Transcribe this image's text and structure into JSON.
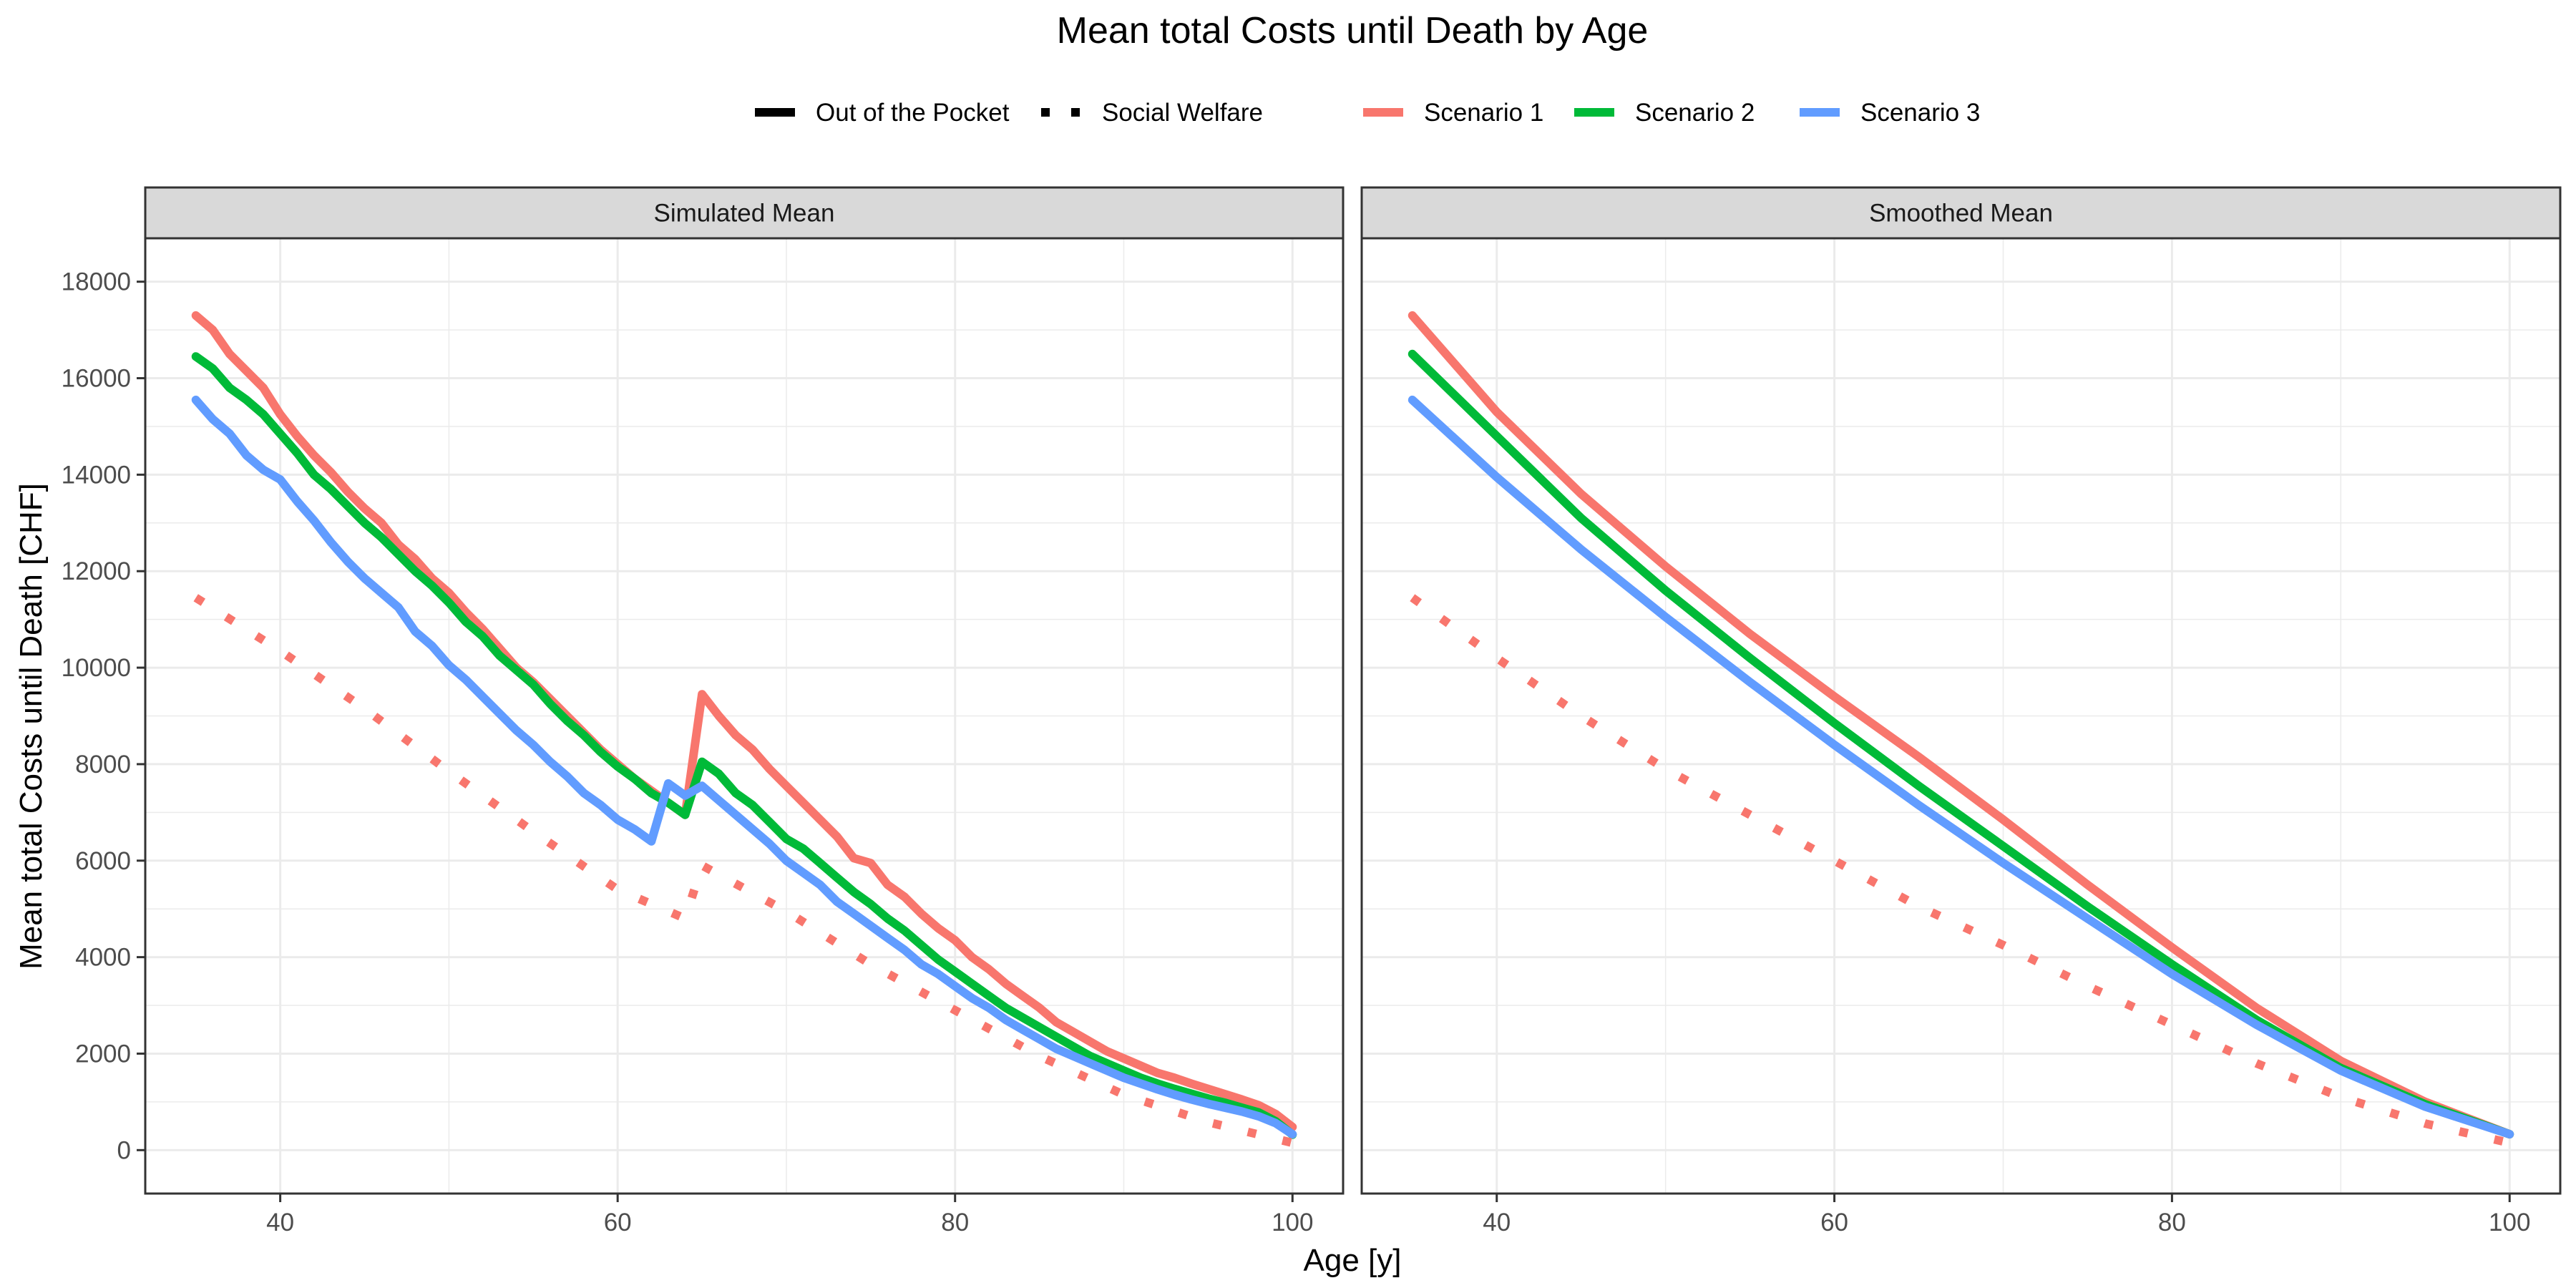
{
  "chart_data": {
    "type": "line",
    "title": "Mean total Costs until Death by Age",
    "xlabel": "Age [y]",
    "ylabel": "Mean total Costs until Death [CHF]",
    "xlim": [
      32,
      103
    ],
    "ylim": [
      -900,
      18900
    ],
    "x_ticks": [
      40,
      60,
      80,
      100
    ],
    "y_ticks": [
      0,
      2000,
      4000,
      6000,
      8000,
      10000,
      12000,
      14000,
      16000,
      18000
    ],
    "grid": true,
    "legend_position": "top",
    "legend": {
      "linetype": [
        {
          "label": "Out of the Pocket",
          "style": "solid"
        },
        {
          "label": "Social Welfare",
          "style": "dotted"
        }
      ],
      "color": [
        {
          "label": "Scenario 1",
          "color": "#F8766D"
        },
        {
          "label": "Scenario 2",
          "color": "#00BA38"
        },
        {
          "label": "Scenario 3",
          "color": "#619CFF"
        }
      ]
    },
    "panels": [
      {
        "label": "Simulated Mean",
        "series": [
          {
            "scenario": "Scenario 1",
            "type": "Out of the Pocket",
            "color": "#F8766D",
            "style": "solid",
            "x": [
              35,
              36,
              37,
              38,
              39,
              40,
              41,
              42,
              43,
              44,
              45,
              46,
              47,
              48,
              49,
              50,
              51,
              52,
              53,
              54,
              55,
              56,
              57,
              58,
              59,
              60,
              61,
              62,
              63,
              64,
              65,
              66,
              67,
              68,
              69,
              70,
              71,
              72,
              73,
              74,
              75,
              76,
              77,
              78,
              79,
              80,
              81,
              82,
              83,
              84,
              85,
              86,
              87,
              88,
              89,
              90,
              91,
              92,
              93,
              94,
              95,
              96,
              97,
              98,
              99,
              100
            ],
            "y": [
              17300,
              17000,
              16500,
              16150,
              15800,
              15250,
              14800,
              14400,
              14050,
              13650,
              13300,
              13000,
              12550,
              12250,
              11850,
              11550,
              11150,
              10800,
              10400,
              10000,
              9700,
              9350,
              9000,
              8650,
              8300,
              8000,
              7700,
              7450,
              7200,
              6950,
              9450,
              9000,
              8600,
              8300,
              7900,
              7550,
              7200,
              6850,
              6500,
              6050,
              5950,
              5500,
              5250,
              4900,
              4600,
              4350,
              4000,
              3750,
              3450,
              3200,
              2950,
              2650,
              2450,
              2250,
              2050,
              1900,
              1750,
              1600,
              1500,
              1380,
              1270,
              1160,
              1050,
              930,
              750,
              480
            ]
          },
          {
            "scenario": "Scenario 2",
            "type": "Out of the Pocket",
            "color": "#00BA38",
            "style": "solid",
            "x": [
              35,
              36,
              37,
              38,
              39,
              40,
              41,
              42,
              43,
              44,
              45,
              46,
              47,
              48,
              49,
              50,
              51,
              52,
              53,
              54,
              55,
              56,
              57,
              58,
              59,
              60,
              61,
              62,
              63,
              64,
              65,
              66,
              67,
              68,
              69,
              70,
              71,
              72,
              73,
              74,
              75,
              76,
              77,
              78,
              79,
              80,
              81,
              82,
              83,
              84,
              85,
              86,
              87,
              88,
              89,
              90,
              91,
              92,
              93,
              94,
              95,
              96,
              97,
              98,
              99,
              100
            ],
            "y": [
              16450,
              16200,
              15800,
              15550,
              15250,
              14850,
              14450,
              14000,
              13700,
              13350,
              13000,
              12700,
              12350,
              12000,
              11700,
              11350,
              10950,
              10650,
              10250,
              9950,
              9650,
              9250,
              8900,
              8600,
              8250,
              7950,
              7700,
              7400,
              7200,
              6950,
              8050,
              7800,
              7400,
              7150,
              6800,
              6450,
              6250,
              5950,
              5650,
              5350,
              5100,
              4800,
              4550,
              4250,
              3950,
              3700,
              3450,
              3200,
              2950,
              2750,
              2550,
              2350,
              2150,
              1950,
              1800,
              1650,
              1500,
              1380,
              1270,
              1170,
              1070,
              980,
              880,
              780,
              600,
              320
            ]
          },
          {
            "scenario": "Scenario 3",
            "type": "Out of the Pocket",
            "color": "#619CFF",
            "style": "solid",
            "x": [
              35,
              36,
              37,
              38,
              39,
              40,
              41,
              42,
              43,
              44,
              45,
              46,
              47,
              48,
              49,
              50,
              51,
              52,
              53,
              54,
              55,
              56,
              57,
              58,
              59,
              60,
              61,
              62,
              63,
              64,
              65,
              66,
              67,
              68,
              69,
              70,
              71,
              72,
              73,
              74,
              75,
              76,
              77,
              78,
              79,
              80,
              81,
              82,
              83,
              84,
              85,
              86,
              87,
              88,
              89,
              90,
              91,
              92,
              93,
              94,
              95,
              96,
              97,
              98,
              99,
              100
            ],
            "y": [
              15550,
              15150,
              14850,
              14400,
              14100,
              13900,
              13450,
              13050,
              12600,
              12200,
              11850,
              11550,
              11250,
              10750,
              10450,
              10050,
              9750,
              9400,
              9050,
              8700,
              8400,
              8050,
              7750,
              7400,
              7150,
              6850,
              6650,
              6400,
              7600,
              7350,
              7550,
              7250,
              6950,
              6650,
              6350,
              6000,
              5750,
              5500,
              5150,
              4900,
              4650,
              4400,
              4150,
              3850,
              3650,
              3400,
              3150,
              2950,
              2700,
              2500,
              2300,
              2100,
              1950,
              1800,
              1650,
              1500,
              1380,
              1260,
              1150,
              1050,
              960,
              880,
              800,
              700,
              560,
              330
            ]
          },
          {
            "scenario": "Scenario 1",
            "type": "Social Welfare",
            "color": "#F8766D",
            "style": "dotted",
            "x": [
              35,
              40,
              45,
              50,
              55,
              60,
              64,
              65,
              70,
              75,
              80,
              85,
              90,
              95,
              100
            ],
            "y": [
              11450,
              10350,
              9150,
              7850,
              6600,
              5400,
              4800,
              5900,
              4950,
              3850,
              2900,
              1950,
              1150,
              580,
              150
            ]
          }
        ]
      },
      {
        "label": "Smoothed Mean",
        "series": [
          {
            "scenario": "Scenario 1",
            "type": "Out of the Pocket",
            "color": "#F8766D",
            "style": "solid",
            "x": [
              35,
              40,
              45,
              50,
              55,
              60,
              65,
              70,
              75,
              80,
              85,
              90,
              95,
              100
            ],
            "y": [
              17300,
              15300,
              13600,
              12100,
              10700,
              9400,
              8150,
              6850,
              5500,
              4200,
              2950,
              1850,
              1000,
              330
            ]
          },
          {
            "scenario": "Scenario 2",
            "type": "Out of the Pocket",
            "color": "#00BA38",
            "style": "solid",
            "x": [
              35,
              40,
              45,
              50,
              55,
              60,
              65,
              70,
              75,
              80,
              85,
              90,
              95,
              100
            ],
            "y": [
              16500,
              14800,
              13100,
              11600,
              10200,
              8850,
              7550,
              6300,
              5050,
              3850,
              2700,
              1700,
              950,
              330
            ]
          },
          {
            "scenario": "Scenario 3",
            "type": "Out of the Pocket",
            "color": "#619CFF",
            "style": "solid",
            "x": [
              35,
              40,
              45,
              50,
              55,
              60,
              65,
              70,
              75,
              80,
              85,
              90,
              95,
              100
            ],
            "y": [
              15550,
              13950,
              12450,
              11050,
              9700,
              8400,
              7150,
              5950,
              4800,
              3650,
              2600,
              1650,
              900,
              330
            ]
          },
          {
            "scenario": "Scenario 1",
            "type": "Social Welfare",
            "color": "#F8766D",
            "style": "dotted",
            "x": [
              35,
              40,
              45,
              50,
              55,
              60,
              65,
              70,
              75,
              80,
              85,
              90,
              95,
              100
            ],
            "y": [
              11450,
              10200,
              9000,
              7900,
              6950,
              6000,
              5050,
              4250,
              3400,
              2600,
              1800,
              1100,
              550,
              150
            ]
          }
        ]
      }
    ]
  }
}
